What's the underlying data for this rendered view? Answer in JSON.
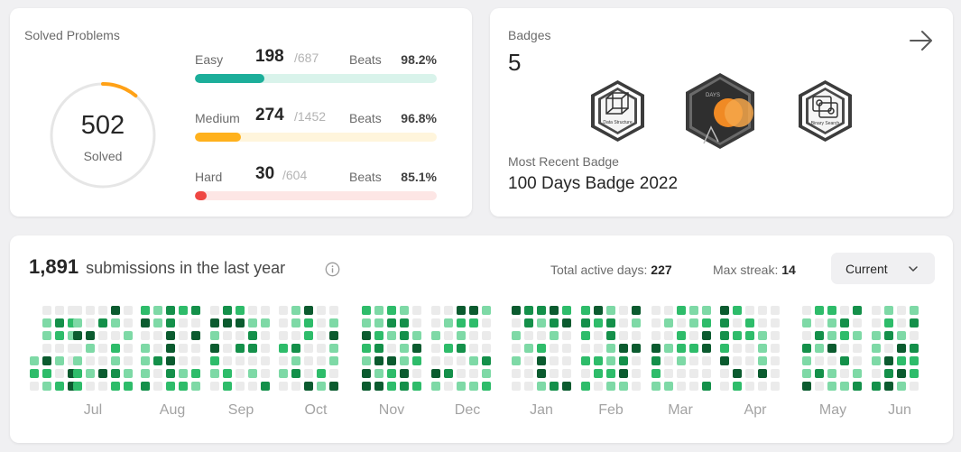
{
  "solved": {
    "title": "Solved Problems",
    "total": "502",
    "total_label": "Solved",
    "ring_fraction": 0.11,
    "difficulties": [
      {
        "name": "Easy",
        "solved": "198",
        "total": "/687",
        "beats_label": "Beats",
        "beats": "98.2%",
        "fraction": 0.288,
        "fill_color": "#1cae9a",
        "track_color": "#d9f3eb"
      },
      {
        "name": "Medium",
        "solved": "274",
        "total": "/1452",
        "beats_label": "Beats",
        "beats": "96.8%",
        "fraction": 0.189,
        "fill_color": "#ffb11d",
        "track_color": "#fff5dc"
      },
      {
        "name": "Hard",
        "solved": "30",
        "total": "/604",
        "beats_label": "Beats",
        "beats": "85.1%",
        "fraction": 0.05,
        "fill_color": "#ef4743",
        "track_color": "#fde6e5"
      }
    ]
  },
  "badges": {
    "title": "Badges",
    "count": "5",
    "items": [
      {
        "name": "data-structure-badge",
        "text": "Data Structure"
      },
      {
        "name": "100-days-badge",
        "text": "DAYS"
      },
      {
        "name": "binary-search-badge",
        "text": "Binary Search"
      }
    ],
    "recent_label": "Most Recent Badge",
    "recent_name": "100 Days Badge 2022"
  },
  "submissions": {
    "count": "1,891",
    "text": "submissions in the last year",
    "active_days_label": "Total active days:",
    "active_days": "227",
    "max_streak_label": "Max streak:",
    "max_streak": "14",
    "dropdown": "Current",
    "months": [
      "Jul",
      "Aug",
      "Sep",
      "Oct",
      "Nov",
      "Dec",
      "Jan",
      "Feb",
      "Mar",
      "Apr",
      "May",
      "Jun"
    ],
    "level_colors": [
      "#ebebeb",
      "#7ed9a6",
      "#2ebc6a",
      "#14904a",
      "#0b5b2f"
    ]
  }
}
